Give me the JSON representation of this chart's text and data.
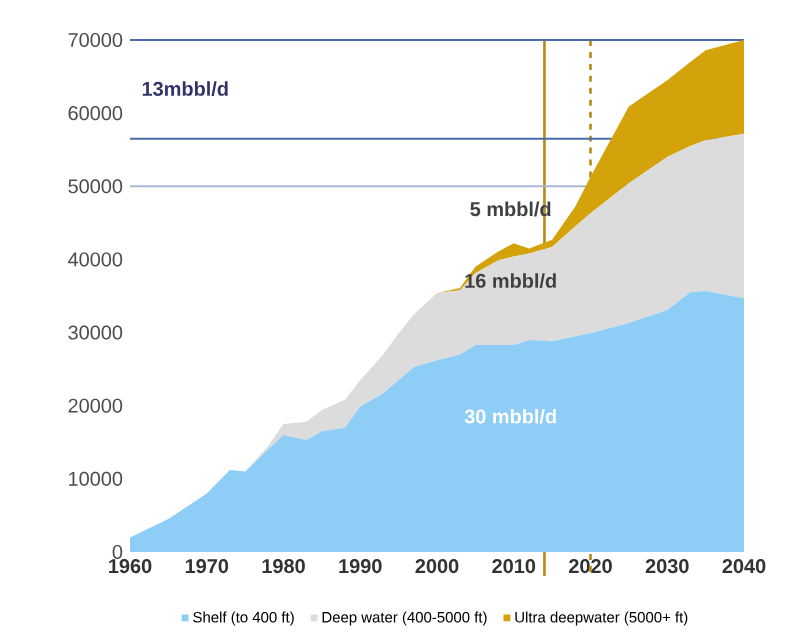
{
  "chart_data": {
    "type": "area",
    "stacked": true,
    "x": [
      1960,
      1965,
      1970,
      1973,
      1975,
      1978,
      1980,
      1983,
      1985,
      1988,
      1990,
      1993,
      1995,
      1997,
      2000,
      2003,
      2005,
      2008,
      2010,
      2012,
      2015,
      2018,
      2020,
      2025,
      2030,
      2033,
      2035,
      2040
    ],
    "series": [
      {
        "name": "Shelf (to 400 ft)",
        "color": "#8ecdf5",
        "values": [
          2000,
          4500,
          8000,
          11200,
          11000,
          14000,
          16000,
          15300,
          16500,
          17000,
          19900,
          21700,
          23500,
          25300,
          26200,
          27000,
          28300,
          28300,
          28300,
          29000,
          28800,
          29500,
          29900,
          31300,
          33100,
          35500,
          35700,
          34700
        ]
      },
      {
        "name": "Deep water (400-5000 ft)",
        "color": "#dcdcdc",
        "values": [
          0,
          0,
          0,
          0,
          0,
          500,
          1500,
          2500,
          2900,
          3800,
          3600,
          5300,
          6400,
          7200,
          9200,
          8800,
          9800,
          11600,
          12100,
          11800,
          12900,
          15000,
          16400,
          19100,
          20900,
          20000,
          20600,
          22500
        ]
      },
      {
        "name": "Ultra deepwater (5000+ ft)",
        "color": "#d4a20a",
        "values": [
          0,
          0,
          0,
          0,
          0,
          0,
          0,
          0,
          0,
          0,
          0,
          0,
          0,
          0,
          0,
          300,
          900,
          1200,
          1800,
          700,
          1000,
          2700,
          5000,
          10500,
          10500,
          11500,
          12300,
          12800
        ]
      }
    ],
    "xlim": [
      1960,
      2040
    ],
    "xticks": [
      1960,
      1970,
      1980,
      1990,
      2000,
      2010,
      2020,
      2030,
      2040
    ],
    "ylim": [
      0,
      70000
    ],
    "yticks": [
      0,
      10000,
      20000,
      30000,
      40000,
      50000,
      60000,
      70000
    ],
    "grid": false,
    "legend": "bottom",
    "ref_lines": [
      {
        "axis": "y",
        "value": 50000,
        "color": "#a8b8d4",
        "line_style": "solid"
      },
      {
        "axis": "y",
        "value": 70000,
        "color": "#4a6aa8",
        "line_style": "solid"
      },
      {
        "axis": "y",
        "value": 56500,
        "color": "#4a6aa8",
        "line_style": "solid"
      },
      {
        "axis": "x",
        "value": 2014,
        "color": "#b58a12",
        "line_style": "solid"
      },
      {
        "axis": "x",
        "value": 2020,
        "color": "#b58a12",
        "line_style": "dashed"
      }
    ],
    "annotations": [
      "13mbbl/d",
      "5 mbbl/d",
      "16 mbbl/d",
      "30 mbbl/d"
    ]
  }
}
